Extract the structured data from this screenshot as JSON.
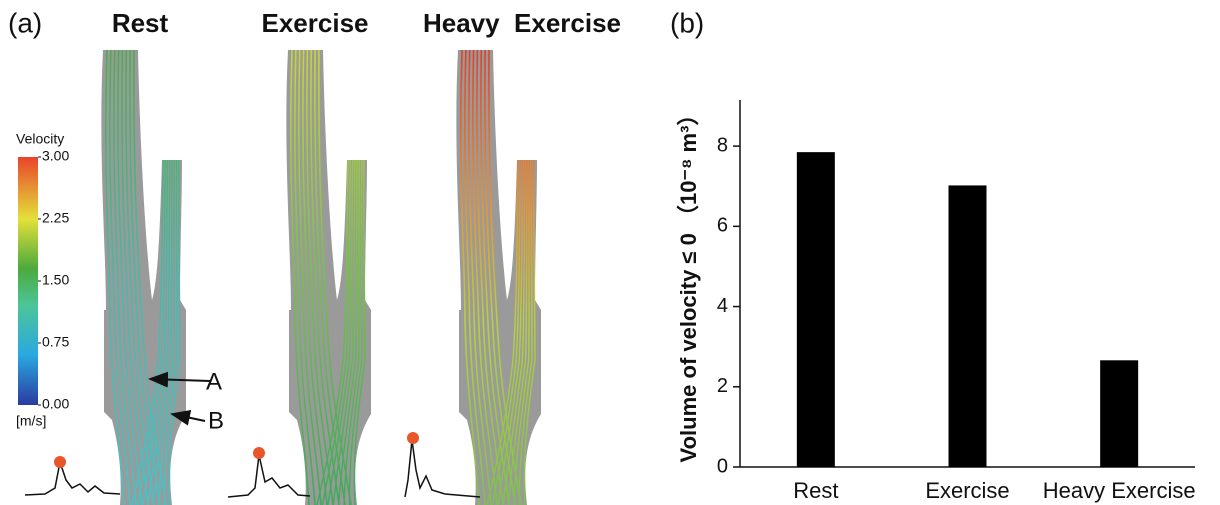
{
  "panel_a": {
    "label": "(a)",
    "conditions": [
      "Rest",
      "Exercise",
      "Heavy  Exercise"
    ],
    "colorbar": {
      "title": "Velocity",
      "unit": "[m/s]",
      "lim": [
        0,
        3
      ],
      "ticks": [
        {
          "value": 3,
          "label": "3.00"
        },
        {
          "value": 2.25,
          "label": "2.25"
        },
        {
          "value": 1.5,
          "label": "1.50"
        },
        {
          "value": 0.75,
          "label": "0.75"
        },
        {
          "value": 0,
          "label": "0.00"
        }
      ]
    },
    "annotations": [
      "A",
      "B"
    ]
  },
  "chart_data": {
    "type": "bar",
    "panel_label": "(b)",
    "y_label": "Volume of velocity ≤ 0 （10⁻⁸ m³）",
    "categories": [
      "Rest",
      "Exercise",
      "Heavy Exercise"
    ],
    "values": [
      7.85,
      7.02,
      2.66
    ],
    "color": "#000000",
    "ylim": [
      0,
      9.15
    ],
    "yticks": [
      0,
      2,
      4,
      6,
      8
    ],
    "grid": false
  }
}
